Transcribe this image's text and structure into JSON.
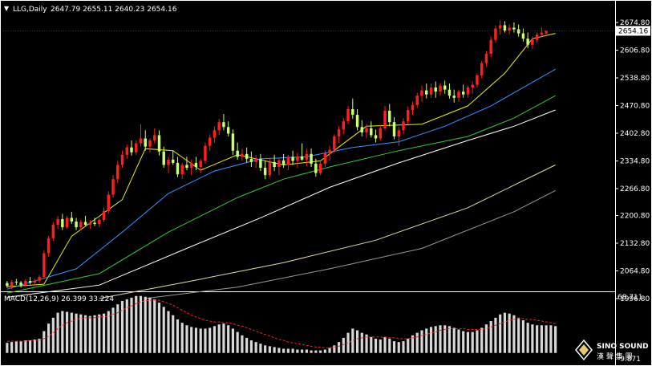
{
  "header": {
    "symbol_label": "LLG,Daily",
    "ohlc": "2647.79 2655.11 2640.23 2654.16"
  },
  "last_price": "2654.16",
  "macd": {
    "label": "MACD(12,26,9) 26.399 33.224",
    "top_label": "68.711",
    "bottom_label": "-9.871"
  },
  "logo": {
    "text": "SINO SOUND",
    "sub": "漢 聲 集 團"
  },
  "colors": {
    "background": "#000000",
    "axis": "#ffffff",
    "bull_candle": "#ff1f1f",
    "bear_candle": "#c8ff78",
    "ma_yellow": "#f0f000",
    "ma_blue": "#3399ff",
    "ma_green": "#33cc33",
    "ma_white": "#ffffff",
    "ma_tan": "#e8dca8",
    "ma_gray": "#9a9a9a",
    "macd_hist": "#d8d8d8",
    "macd_signal": "#ff2020",
    "price_tag_bg": "#ffffff",
    "price_tag_text": "#000000"
  },
  "chart_data": {
    "type": "candlestick",
    "price_axis": {
      "range": [
        1996.8,
        2674.8
      ],
      "ticks": [
        "2674.80",
        "2606.80",
        "2538.80",
        "2470.80",
        "2402.80",
        "2334.80",
        "2266.80",
        "2200.80",
        "2132.80",
        "2064.80",
        "1996.80"
      ]
    },
    "candles": [
      [
        2035,
        2040,
        2023,
        2028
      ],
      [
        2028,
        2042,
        2020,
        2038
      ],
      [
        2038,
        2045,
        2030,
        2036
      ],
      [
        2036,
        2040,
        2024,
        2030
      ],
      [
        2030,
        2045,
        2026,
        2040
      ],
      [
        2040,
        2050,
        2032,
        2036
      ],
      [
        2036,
        2045,
        2028,
        2041
      ],
      [
        2041,
        2055,
        2035,
        2050
      ],
      [
        2050,
        2115,
        2045,
        2108
      ],
      [
        2108,
        2150,
        2100,
        2145
      ],
      [
        2145,
        2185,
        2138,
        2178
      ],
      [
        2178,
        2200,
        2168,
        2192
      ],
      [
        2192,
        2205,
        2165,
        2172
      ],
      [
        2172,
        2200,
        2168,
        2195
      ],
      [
        2195,
        2210,
        2180,
        2186
      ],
      [
        2186,
        2195,
        2165,
        2172
      ],
      [
        2172,
        2190,
        2165,
        2185
      ],
      [
        2185,
        2200,
        2175,
        2178
      ],
      [
        2178,
        2190,
        2168,
        2183
      ],
      [
        2183,
        2195,
        2175,
        2180
      ],
      [
        2180,
        2195,
        2172,
        2190
      ],
      [
        2190,
        2220,
        2185,
        2212
      ],
      [
        2212,
        2260,
        2205,
        2252
      ],
      [
        2252,
        2300,
        2245,
        2290
      ],
      [
        2290,
        2335,
        2280,
        2325
      ],
      [
        2325,
        2360,
        2318,
        2350
      ],
      [
        2350,
        2375,
        2340,
        2368
      ],
      [
        2368,
        2385,
        2348,
        2356
      ],
      [
        2356,
        2385,
        2350,
        2378
      ],
      [
        2378,
        2425,
        2370,
        2390
      ],
      [
        2390,
        2410,
        2360,
        2370
      ],
      [
        2370,
        2390,
        2355,
        2385
      ],
      [
        2385,
        2415,
        2378,
        2398
      ],
      [
        2398,
        2410,
        2348,
        2358
      ],
      [
        2358,
        2370,
        2318,
        2325
      ],
      [
        2325,
        2345,
        2305,
        2338
      ],
      [
        2338,
        2360,
        2325,
        2330
      ],
      [
        2330,
        2345,
        2295,
        2302
      ],
      [
        2302,
        2330,
        2290,
        2325
      ],
      [
        2325,
        2345,
        2312,
        2318
      ],
      [
        2318,
        2338,
        2300,
        2330
      ],
      [
        2330,
        2345,
        2312,
        2320
      ],
      [
        2320,
        2340,
        2305,
        2335
      ],
      [
        2335,
        2380,
        2328,
        2372
      ],
      [
        2372,
        2400,
        2360,
        2392
      ],
      [
        2392,
        2420,
        2380,
        2410
      ],
      [
        2410,
        2438,
        2398,
        2430
      ],
      [
        2430,
        2450,
        2410,
        2418
      ],
      [
        2418,
        2432,
        2395,
        2402
      ],
      [
        2402,
        2412,
        2350,
        2360
      ],
      [
        2360,
        2380,
        2338,
        2345
      ],
      [
        2345,
        2365,
        2335,
        2352
      ],
      [
        2352,
        2368,
        2330,
        2340
      ],
      [
        2340,
        2358,
        2320,
        2332
      ],
      [
        2332,
        2350,
        2318,
        2340
      ],
      [
        2340,
        2352,
        2310,
        2318
      ],
      [
        2318,
        2335,
        2290,
        2300
      ],
      [
        2300,
        2340,
        2295,
        2332
      ],
      [
        2332,
        2350,
        2310,
        2320
      ],
      [
        2320,
        2342,
        2300,
        2336
      ],
      [
        2336,
        2352,
        2318,
        2325
      ],
      [
        2325,
        2350,
        2312,
        2345
      ],
      [
        2345,
        2360,
        2325,
        2335
      ],
      [
        2335,
        2355,
        2318,
        2346
      ],
      [
        2346,
        2378,
        2335,
        2338
      ],
      [
        2338,
        2365,
        2322,
        2352
      ],
      [
        2352,
        2365,
        2320,
        2328
      ],
      [
        2328,
        2340,
        2296,
        2305
      ],
      [
        2305,
        2335,
        2300,
        2328
      ],
      [
        2328,
        2360,
        2320,
        2354
      ],
      [
        2354,
        2372,
        2335,
        2362
      ],
      [
        2362,
        2400,
        2355,
        2395
      ],
      [
        2395,
        2420,
        2380,
        2412
      ],
      [
        2412,
        2440,
        2400,
        2432
      ],
      [
        2432,
        2470,
        2425,
        2462
      ],
      [
        2462,
        2488,
        2438,
        2448
      ],
      [
        2448,
        2462,
        2410,
        2418
      ],
      [
        2418,
        2435,
        2395,
        2405
      ],
      [
        2405,
        2425,
        2390,
        2415
      ],
      [
        2415,
        2432,
        2392,
        2398
      ],
      [
        2398,
        2412,
        2380,
        2390
      ],
      [
        2390,
        2422,
        2385,
        2415
      ],
      [
        2415,
        2470,
        2410,
        2458
      ],
      [
        2458,
        2475,
        2420,
        2430
      ],
      [
        2430,
        2442,
        2388,
        2395
      ],
      [
        2395,
        2418,
        2372,
        2410
      ],
      [
        2410,
        2440,
        2400,
        2432
      ],
      [
        2432,
        2468,
        2425,
        2460
      ],
      [
        2460,
        2480,
        2448,
        2472
      ],
      [
        2472,
        2502,
        2465,
        2495
      ],
      [
        2495,
        2520,
        2480,
        2508
      ],
      [
        2508,
        2525,
        2488,
        2498
      ],
      [
        2498,
        2525,
        2490,
        2515
      ],
      [
        2515,
        2530,
        2490,
        2505
      ],
      [
        2505,
        2525,
        2495,
        2520
      ],
      [
        2520,
        2532,
        2500,
        2510
      ],
      [
        2510,
        2525,
        2488,
        2495
      ],
      [
        2495,
        2510,
        2478,
        2490
      ],
      [
        2490,
        2510,
        2480,
        2505
      ],
      [
        2505,
        2522,
        2490,
        2498
      ],
      [
        2498,
        2520,
        2490,
        2515
      ],
      [
        2515,
        2530,
        2500,
        2522
      ],
      [
        2522,
        2550,
        2515,
        2545
      ],
      [
        2545,
        2580,
        2538,
        2575
      ],
      [
        2575,
        2605,
        2565,
        2598
      ],
      [
        2598,
        2640,
        2590,
        2632
      ],
      [
        2632,
        2668,
        2625,
        2660
      ],
      [
        2660,
        2680,
        2645,
        2668
      ],
      [
        2668,
        2678,
        2650,
        2655
      ],
      [
        2655,
        2670,
        2645,
        2662
      ],
      [
        2662,
        2675,
        2650,
        2658
      ],
      [
        2658,
        2670,
        2640,
        2648
      ],
      [
        2648,
        2660,
        2628,
        2635
      ],
      [
        2635,
        2650,
        2612,
        2620
      ],
      [
        2620,
        2640,
        2610,
        2632
      ],
      [
        2632,
        2650,
        2625,
        2645
      ],
      [
        2645,
        2662,
        2638,
        2650
      ],
      [
        2647.79,
        2655.11,
        2640.23,
        2654.16
      ]
    ],
    "moving_averages": [
      {
        "color": "#f0f000",
        "values": [
          [
            0,
            2026
          ],
          [
            8,
            2032
          ],
          [
            14,
            2150
          ],
          [
            25,
            2240
          ],
          [
            30,
            2365
          ],
          [
            36,
            2360
          ],
          [
            42,
            2312
          ],
          [
            50,
            2350
          ],
          [
            60,
            2325
          ],
          [
            68,
            2335
          ],
          [
            78,
            2420
          ],
          [
            90,
            2425
          ],
          [
            100,
            2470
          ],
          [
            108,
            2550
          ],
          [
            114,
            2635
          ],
          [
            119,
            2648
          ]
        ]
      },
      {
        "color": "#3399ff",
        "values": [
          [
            0,
            2020
          ],
          [
            15,
            2070
          ],
          [
            25,
            2160
          ],
          [
            35,
            2255
          ],
          [
            45,
            2310
          ],
          [
            55,
            2340
          ],
          [
            65,
            2345
          ],
          [
            75,
            2368
          ],
          [
            85,
            2382
          ],
          [
            95,
            2420
          ],
          [
            105,
            2470
          ],
          [
            119,
            2560
          ]
        ]
      },
      {
        "color": "#33cc33",
        "values": [
          [
            0,
            2010
          ],
          [
            20,
            2058
          ],
          [
            35,
            2160
          ],
          [
            50,
            2245
          ],
          [
            60,
            2290
          ],
          [
            70,
            2320
          ],
          [
            85,
            2360
          ],
          [
            100,
            2395
          ],
          [
            110,
            2440
          ],
          [
            119,
            2495
          ]
        ]
      },
      {
        "color": "#ffffff",
        "values": [
          [
            0,
            2000
          ],
          [
            20,
            2030
          ],
          [
            40,
            2125
          ],
          [
            55,
            2195
          ],
          [
            70,
            2270
          ],
          [
            85,
            2330
          ],
          [
            100,
            2385
          ],
          [
            110,
            2420
          ],
          [
            119,
            2460
          ]
        ]
      },
      {
        "color": "#e8dca8",
        "values": [
          [
            20,
            1997
          ],
          [
            40,
            2040
          ],
          [
            60,
            2085
          ],
          [
            80,
            2140
          ],
          [
            100,
            2220
          ],
          [
            119,
            2325
          ]
        ]
      },
      {
        "color": "#9a9a9a",
        "values": [
          [
            30,
            1997
          ],
          [
            50,
            2025
          ],
          [
            70,
            2070
          ],
          [
            90,
            2120
          ],
          [
            110,
            2210
          ],
          [
            119,
            2262
          ]
        ]
      }
    ],
    "macd_histogram": [
      12,
      13,
      14,
      14,
      15,
      15,
      16,
      17,
      26,
      35,
      42,
      48,
      50,
      49,
      48,
      47,
      46,
      45,
      44,
      45,
      46,
      47,
      50,
      54,
      58,
      62,
      64,
      66,
      68,
      68,
      67,
      66,
      64,
      60,
      55,
      50,
      45,
      40,
      36,
      33,
      31,
      30,
      29,
      29,
      30,
      32,
      34,
      35,
      33,
      29,
      25,
      21,
      18,
      15,
      13,
      11,
      9,
      8,
      7,
      6,
      5,
      5,
      5,
      4,
      4,
      4,
      3,
      3,
      3,
      4,
      6,
      9,
      13,
      18,
      24,
      29,
      27,
      24,
      22,
      19,
      17,
      16,
      19,
      17,
      14,
      13,
      14,
      17,
      21,
      24,
      27,
      29,
      31,
      32,
      33,
      33,
      32,
      30,
      28,
      26,
      25,
      25,
      27,
      30,
      34,
      38,
      42,
      46,
      48,
      47,
      45,
      42,
      39,
      36,
      34,
      33,
      33,
      33,
      33,
      32
    ],
    "macd_signal": [
      14,
      14,
      14,
      14,
      14,
      15,
      15,
      15,
      17,
      20,
      24,
      29,
      33,
      36,
      38,
      40,
      41,
      42,
      42,
      42,
      43,
      43,
      44,
      46,
      48,
      51,
      54,
      56,
      59,
      61,
      62,
      63,
      63,
      63,
      61,
      59,
      57,
      54,
      51,
      48,
      45,
      43,
      41,
      39,
      38,
      37,
      37,
      36,
      36,
      35,
      33,
      32,
      30,
      28,
      26,
      24,
      22,
      20,
      18,
      16,
      15,
      13,
      12,
      11,
      10,
      9,
      8,
      7,
      7,
      6,
      6,
      7,
      8,
      10,
      12,
      15,
      17,
      18,
      19,
      19,
      19,
      19,
      19,
      18,
      18,
      17,
      17,
      17,
      18,
      19,
      21,
      22,
      24,
      25,
      27,
      28,
      29,
      29,
      29,
      29,
      28,
      28,
      28,
      28,
      29,
      31,
      33,
      35,
      37,
      39,
      40,
      41,
      41,
      40,
      40,
      39,
      38,
      37,
      36,
      35
    ],
    "macd_axis": {
      "range": [
        -9.871,
        68.711
      ],
      "top_label": "68.711",
      "bottom_label": "-9.871"
    }
  }
}
